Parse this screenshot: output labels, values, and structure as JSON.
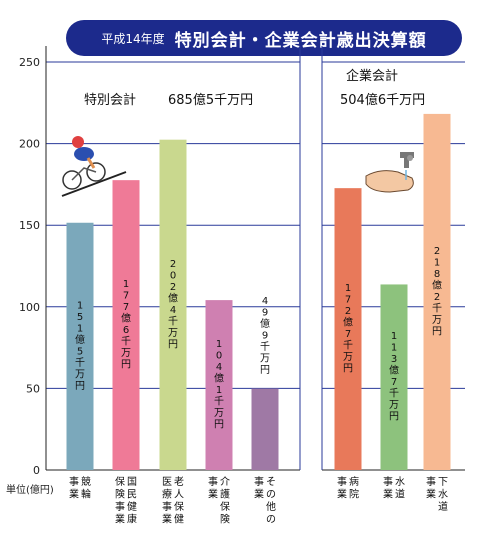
{
  "title": {
    "prefix": "平成14年度",
    "main": "特別会計・企業会計歳出決算額"
  },
  "unit_label": "単位(億円)",
  "groups": {
    "special": {
      "name": "特別会計",
      "total": "685億5千万円"
    },
    "enterprise": {
      "name": "企業会計",
      "total": "504億6千万円"
    }
  },
  "chart_data": {
    "type": "bar",
    "ylim": [
      0,
      250
    ],
    "yticks": [
      0,
      50,
      100,
      150,
      200,
      250
    ],
    "grid": true,
    "bars": [
      {
        "category": "競輪事業",
        "value": 151.5,
        "label": "151億5千万円",
        "color": "#7ba8bb"
      },
      {
        "category": "国民健康保険事業",
        "value": 177.6,
        "label": "177億6千万円",
        "color": "#ef7a97"
      },
      {
        "category": "老人保健医療事業",
        "value": 202.4,
        "label": "202億4千万円",
        "color": "#c9d88e"
      },
      {
        "category": "介護保険事業",
        "value": 104.1,
        "label": "104億1千万円",
        "color": "#cf80b1"
      },
      {
        "category": "その他の事業",
        "value": 49.9,
        "label": "49億9千万円",
        "color": "#9f79a5"
      },
      {
        "category": "病院事業",
        "value": 172.7,
        "label": "172億7千万円",
        "color": "#e8795a"
      },
      {
        "category": "水道事業",
        "value": 113.7,
        "label": "113億7千万円",
        "color": "#8dc27d"
      },
      {
        "category": "下水道事業",
        "value": 218.2,
        "label": "218億2千万円",
        "color": "#f7b992"
      }
    ],
    "xlabels": [
      [
        "競輪",
        "事業"
      ],
      [
        "国民健康",
        "保険事業"
      ],
      [
        "老人保健",
        "医療事業"
      ],
      [
        "介護保険",
        "事業"
      ],
      [
        "その他の",
        "事業"
      ],
      [
        "病院",
        "事業"
      ],
      [
        "水道",
        "事業"
      ],
      [
        "下水道",
        "事業"
      ]
    ]
  }
}
